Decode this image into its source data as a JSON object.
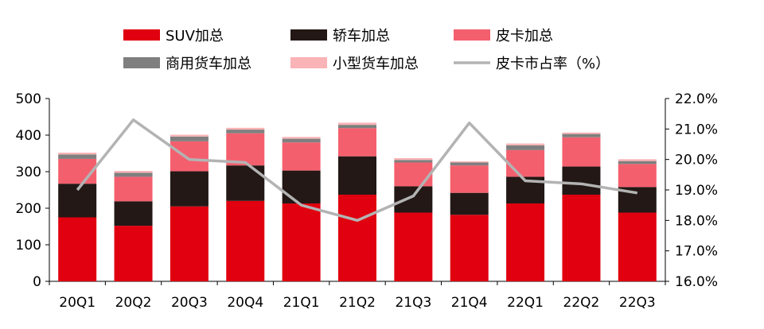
{
  "chart_data": {
    "type": "bar",
    "stacked": true,
    "categories": [
      "20Q1",
      "20Q2",
      "20Q3",
      "20Q4",
      "21Q1",
      "21Q2",
      "21Q3",
      "21Q4",
      "22Q1",
      "22Q2",
      "22Q3"
    ],
    "series": [
      {
        "name": "SUV加总",
        "color": "#e0000f",
        "values": [
          175,
          152,
          205,
          220,
          213,
          237,
          188,
          182,
          213,
          237,
          188
        ]
      },
      {
        "name": "轿车加总",
        "color": "#231815",
        "values": [
          92,
          67,
          96,
          97,
          90,
          105,
          72,
          60,
          73,
          77,
          70
        ]
      },
      {
        "name": "皮卡加总",
        "color": "#f45f6e",
        "values": [
          68,
          67,
          82,
          88,
          77,
          77,
          65,
          75,
          73,
          80,
          63
        ]
      },
      {
        "name": "商用货车加总",
        "color": "#7f7f7f",
        "values": [
          12,
          11,
          13,
          10,
          10,
          9,
          7,
          8,
          13,
          9,
          8
        ]
      },
      {
        "name": "小型货车加总",
        "color": "#fab3b6",
        "values": [
          5,
          5,
          5,
          5,
          5,
          6,
          5,
          3,
          5,
          4,
          5
        ]
      }
    ],
    "line": {
      "name": "皮卡市占率（%）",
      "color": "#b3b3b3",
      "values": [
        19.0,
        21.3,
        20.0,
        19.9,
        18.5,
        18.0,
        18.8,
        21.2,
        19.3,
        19.2,
        18.9
      ]
    },
    "y_left": {
      "min": 0,
      "max": 500,
      "ticks": [
        "0",
        "100",
        "200",
        "300",
        "400",
        "500"
      ]
    },
    "y_right": {
      "min": 16,
      "max": 22,
      "ticks": [
        "16.0%",
        "17.0%",
        "18.0%",
        "19.0%",
        "20.0%",
        "21.0%",
        "22.0%"
      ]
    },
    "legend": [
      {
        "label": "SUV加总",
        "kind": "box",
        "color": "#e0000f"
      },
      {
        "label": "轿车加总",
        "kind": "box",
        "color": "#231815"
      },
      {
        "label": "皮卡加总",
        "kind": "box",
        "color": "#f45f6e"
      },
      {
        "label": "商用货车加总",
        "kind": "box",
        "color": "#7f7f7f"
      },
      {
        "label": "小型货车加总",
        "kind": "box",
        "color": "#fab3b6"
      },
      {
        "label": "皮卡市占率（%）",
        "kind": "line",
        "color": "#b3b3b3"
      }
    ],
    "legend_position": "top",
    "grid": false
  }
}
